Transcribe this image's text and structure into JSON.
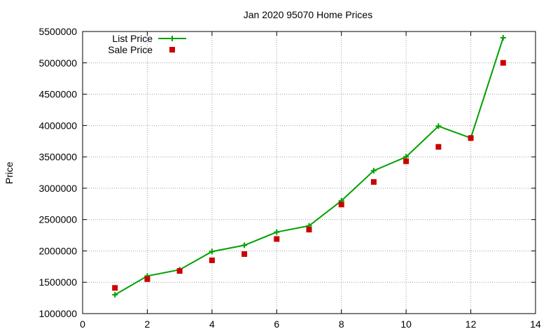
{
  "chart_data": {
    "type": "line",
    "title": "Jan 2020 95070 Home Prices",
    "xlabel": "",
    "ylabel": "Price",
    "xlim": [
      0,
      14
    ],
    "ylim": [
      1000000,
      5500000
    ],
    "x_ticks": [
      "0",
      "2",
      "4",
      "6",
      "8",
      "10",
      "12",
      "14"
    ],
    "y_ticks": [
      "1000000",
      "1500000",
      "2000000",
      "2500000",
      "3000000",
      "3500000",
      "4000000",
      "4500000",
      "5000000",
      "5500000"
    ],
    "grid": true,
    "legend_position": "top-left",
    "series": [
      {
        "name": "List Price",
        "style": "line-with-plus-markers",
        "color": "#00a000",
        "x": [
          1,
          2,
          3,
          4,
          5,
          6,
          7,
          8,
          9,
          10,
          11,
          12,
          13
        ],
        "y": [
          1300000,
          1600000,
          1700000,
          1990000,
          2090000,
          2300000,
          2400000,
          2800000,
          3280000,
          3500000,
          3990000,
          3800000,
          5400000
        ]
      },
      {
        "name": "Sale Price",
        "style": "square-markers",
        "color": "#cc0000",
        "x": [
          1,
          2,
          3,
          4,
          5,
          6,
          7,
          8,
          9,
          10,
          11,
          12,
          13
        ],
        "y": [
          1410000,
          1550000,
          1680000,
          1850000,
          1950000,
          2190000,
          2340000,
          2740000,
          3100000,
          3430000,
          3660000,
          3800000,
          5000000
        ]
      }
    ]
  }
}
